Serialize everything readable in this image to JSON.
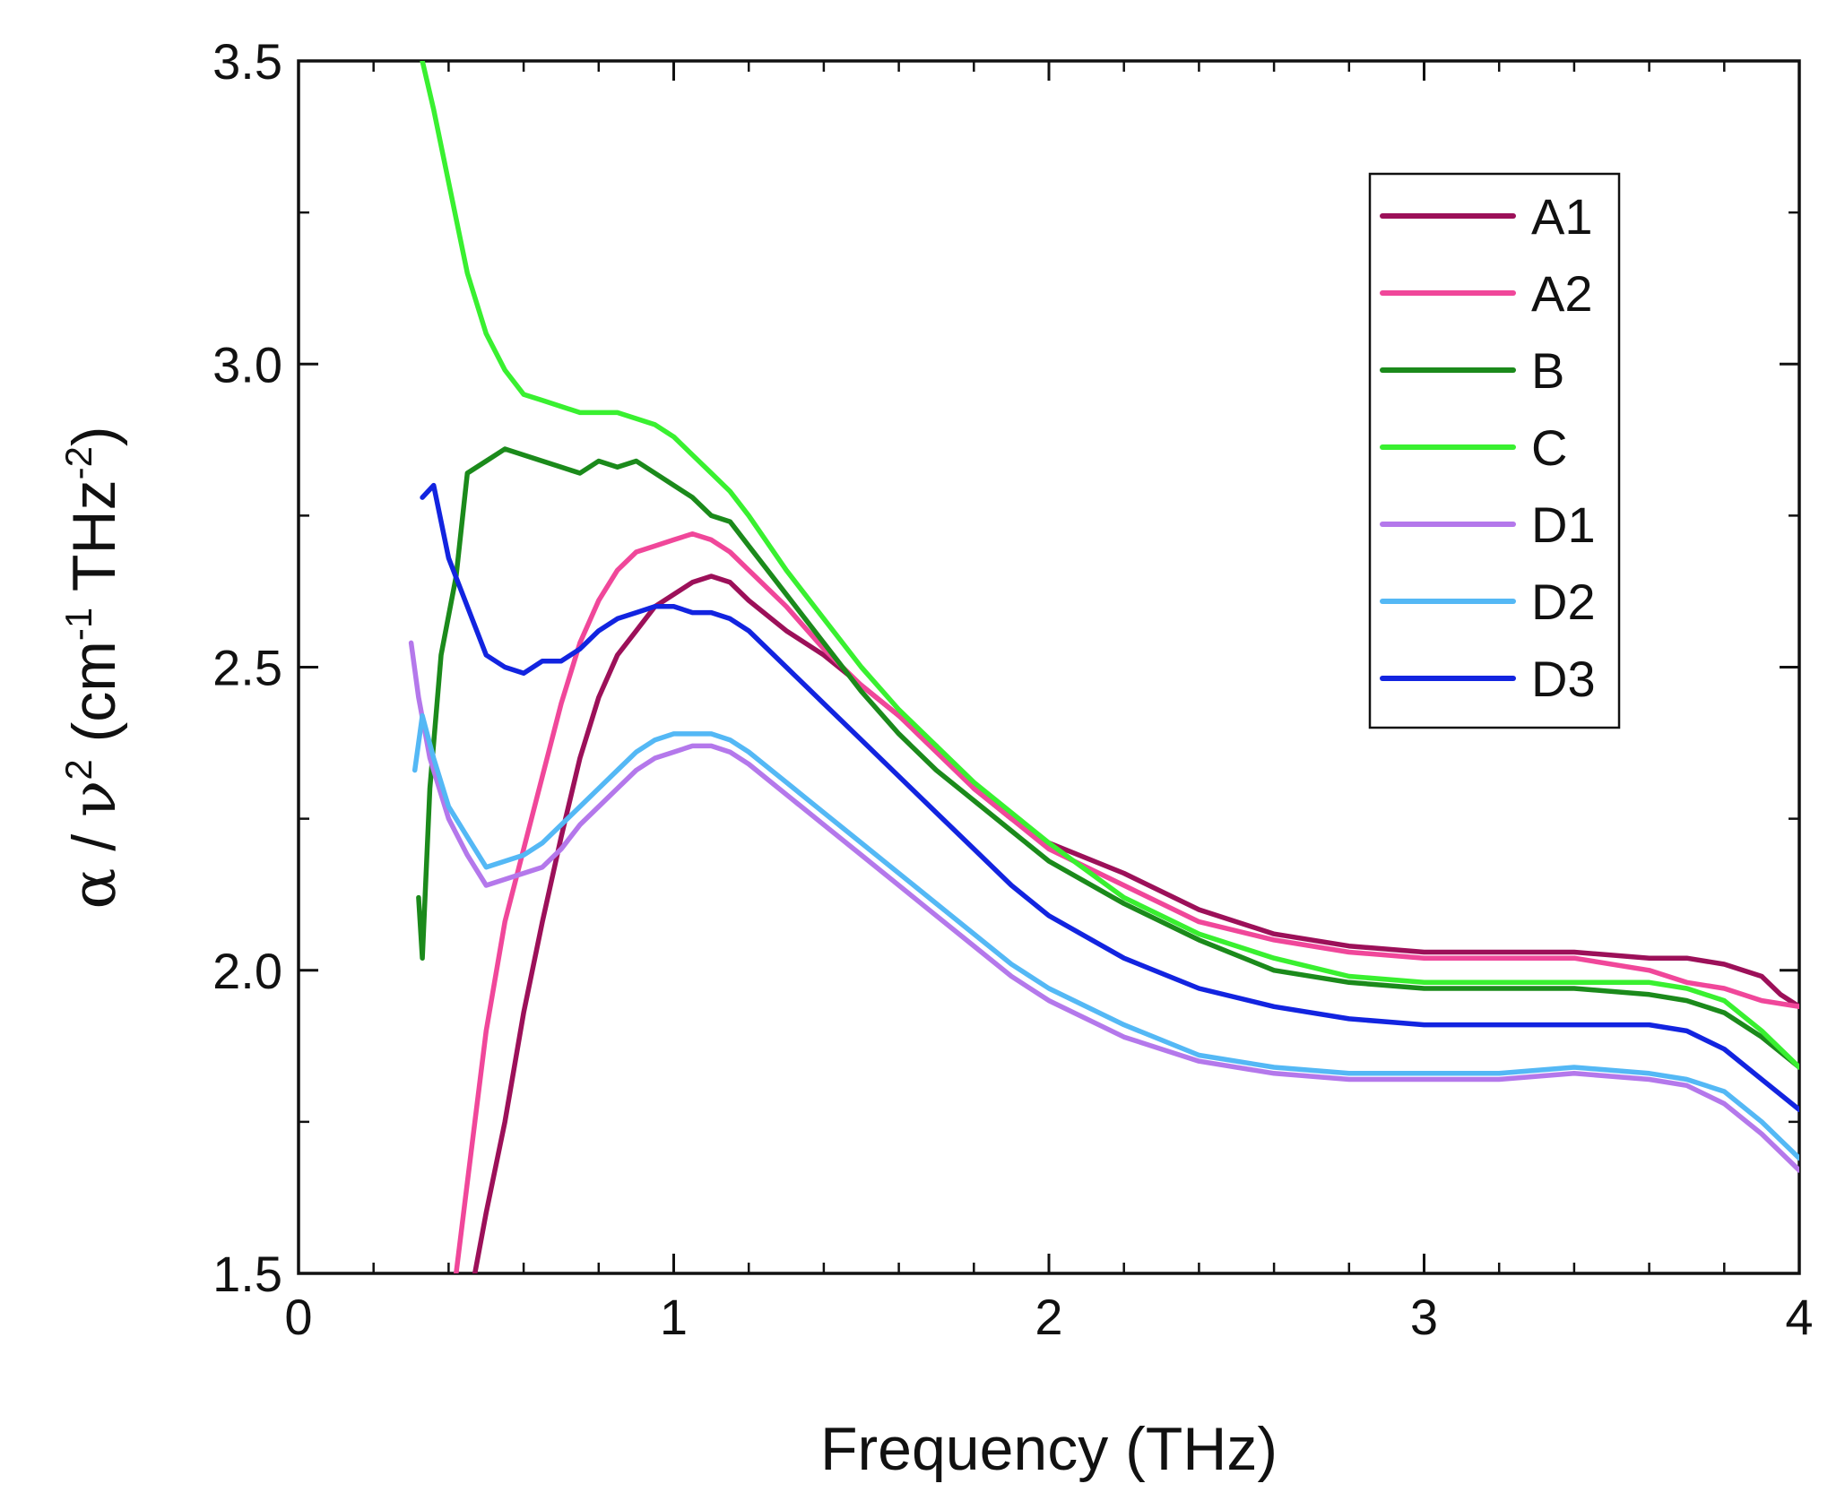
{
  "chart_data": {
    "type": "line",
    "title": "",
    "xlabel": "Frequency (THz)",
    "ylabel": {
      "alpha": "α",
      "sep1": " / ",
      "nu": "ν",
      "sq": "2",
      "open": " (cm",
      "cm_exp": "-1",
      "mid": " THz",
      "thz_exp": "-2",
      "close": ")"
    },
    "xlim": [
      0,
      4
    ],
    "ylim": [
      1.5,
      3.5
    ],
    "xticks": [
      0,
      1,
      2,
      3,
      4
    ],
    "xtick_labels": [
      "0",
      "1",
      "2",
      "3",
      "4"
    ],
    "yticks": [
      1.5,
      2.0,
      2.5,
      3.0,
      3.5
    ],
    "ytick_labels": [
      "1.5",
      "2.0",
      "2.5",
      "3.0",
      "3.5"
    ],
    "x_minor_step": 0.2,
    "y_minor_step": 0.25,
    "grid": false,
    "legend_position": "top-right",
    "series": [
      {
        "name": "A1",
        "color": "#9c1059",
        "x": [
          0.47,
          0.5,
          0.55,
          0.6,
          0.65,
          0.7,
          0.75,
          0.8,
          0.85,
          0.9,
          0.95,
          1.0,
          1.05,
          1.1,
          1.15,
          1.2,
          1.3,
          1.4,
          1.5,
          1.6,
          1.7,
          1.8,
          1.9,
          2.0,
          2.2,
          2.4,
          2.6,
          2.8,
          3.0,
          3.2,
          3.4,
          3.6,
          3.7,
          3.8,
          3.85,
          3.9,
          3.95,
          4.0
        ],
        "y": [
          1.5,
          1.6,
          1.75,
          1.93,
          2.08,
          2.22,
          2.35,
          2.45,
          2.52,
          2.56,
          2.6,
          2.62,
          2.64,
          2.65,
          2.64,
          2.61,
          2.56,
          2.52,
          2.47,
          2.42,
          2.37,
          2.3,
          2.25,
          2.21,
          2.16,
          2.1,
          2.06,
          2.04,
          2.03,
          2.03,
          2.03,
          2.02,
          2.02,
          2.01,
          2.0,
          1.99,
          1.96,
          1.94
        ]
      },
      {
        "name": "A2",
        "color": "#f0479a",
        "x": [
          0.42,
          0.45,
          0.5,
          0.55,
          0.6,
          0.65,
          0.7,
          0.75,
          0.8,
          0.85,
          0.9,
          0.95,
          1.0,
          1.05,
          1.1,
          1.15,
          1.2,
          1.3,
          1.4,
          1.5,
          1.6,
          1.7,
          1.8,
          1.9,
          2.0,
          2.2,
          2.4,
          2.6,
          2.8,
          3.0,
          3.2,
          3.4,
          3.6,
          3.7,
          3.8,
          3.9,
          4.0
        ],
        "y": [
          1.5,
          1.65,
          1.9,
          2.08,
          2.2,
          2.32,
          2.44,
          2.54,
          2.61,
          2.66,
          2.69,
          2.7,
          2.71,
          2.72,
          2.71,
          2.69,
          2.66,
          2.6,
          2.53,
          2.47,
          2.42,
          2.36,
          2.3,
          2.25,
          2.2,
          2.14,
          2.08,
          2.05,
          2.03,
          2.02,
          2.02,
          2.02,
          2.0,
          1.98,
          1.97,
          1.95,
          1.94
        ]
      },
      {
        "name": "B",
        "color": "#1b8a1b",
        "x": [
          0.32,
          0.33,
          0.35,
          0.38,
          0.42,
          0.45,
          0.5,
          0.55,
          0.6,
          0.65,
          0.7,
          0.75,
          0.8,
          0.85,
          0.9,
          0.95,
          1.0,
          1.05,
          1.1,
          1.15,
          1.2,
          1.3,
          1.4,
          1.5,
          1.6,
          1.7,
          1.8,
          1.9,
          2.0,
          2.2,
          2.4,
          2.6,
          2.8,
          3.0,
          3.2,
          3.4,
          3.6,
          3.7,
          3.8,
          3.9,
          4.0
        ],
        "y": [
          2.12,
          2.02,
          2.3,
          2.52,
          2.65,
          2.82,
          2.84,
          2.86,
          2.85,
          2.84,
          2.83,
          2.82,
          2.84,
          2.83,
          2.84,
          2.82,
          2.8,
          2.78,
          2.75,
          2.74,
          2.7,
          2.62,
          2.54,
          2.46,
          2.39,
          2.33,
          2.28,
          2.23,
          2.18,
          2.11,
          2.05,
          2.0,
          1.98,
          1.97,
          1.97,
          1.97,
          1.96,
          1.95,
          1.93,
          1.89,
          1.84
        ]
      },
      {
        "name": "C",
        "color": "#39f030",
        "x": [
          0.33,
          0.36,
          0.4,
          0.45,
          0.5,
          0.55,
          0.6,
          0.65,
          0.7,
          0.75,
          0.8,
          0.85,
          0.9,
          0.95,
          1.0,
          1.05,
          1.1,
          1.15,
          1.2,
          1.3,
          1.4,
          1.5,
          1.6,
          1.7,
          1.8,
          1.9,
          2.0,
          2.2,
          2.4,
          2.6,
          2.8,
          3.0,
          3.2,
          3.4,
          3.6,
          3.7,
          3.8,
          3.9,
          4.0
        ],
        "y": [
          3.5,
          3.42,
          3.3,
          3.15,
          3.05,
          2.99,
          2.95,
          2.94,
          2.93,
          2.92,
          2.92,
          2.92,
          2.91,
          2.9,
          2.88,
          2.85,
          2.82,
          2.79,
          2.75,
          2.66,
          2.58,
          2.5,
          2.43,
          2.37,
          2.31,
          2.26,
          2.21,
          2.12,
          2.06,
          2.02,
          1.99,
          1.98,
          1.98,
          1.98,
          1.98,
          1.97,
          1.95,
          1.9,
          1.84
        ]
      },
      {
        "name": "D1",
        "color": "#b478eb",
        "x": [
          0.3,
          0.32,
          0.35,
          0.4,
          0.45,
          0.5,
          0.55,
          0.6,
          0.65,
          0.7,
          0.75,
          0.8,
          0.85,
          0.9,
          0.95,
          1.0,
          1.05,
          1.1,
          1.15,
          1.2,
          1.3,
          1.4,
          1.5,
          1.6,
          1.7,
          1.8,
          1.9,
          2.0,
          2.2,
          2.4,
          2.6,
          2.8,
          3.0,
          3.2,
          3.4,
          3.6,
          3.7,
          3.8,
          3.9,
          4.0
        ],
        "y": [
          2.54,
          2.45,
          2.35,
          2.25,
          2.19,
          2.14,
          2.15,
          2.16,
          2.17,
          2.2,
          2.24,
          2.27,
          2.3,
          2.33,
          2.35,
          2.36,
          2.37,
          2.37,
          2.36,
          2.34,
          2.29,
          2.24,
          2.19,
          2.14,
          2.09,
          2.04,
          1.99,
          1.95,
          1.89,
          1.85,
          1.83,
          1.82,
          1.82,
          1.82,
          1.83,
          1.82,
          1.81,
          1.78,
          1.73,
          1.67
        ]
      },
      {
        "name": "D2",
        "color": "#54b8f5",
        "x": [
          0.31,
          0.33,
          0.36,
          0.4,
          0.45,
          0.5,
          0.55,
          0.6,
          0.65,
          0.7,
          0.75,
          0.8,
          0.85,
          0.9,
          0.95,
          1.0,
          1.05,
          1.1,
          1.15,
          1.2,
          1.3,
          1.4,
          1.5,
          1.6,
          1.7,
          1.8,
          1.9,
          2.0,
          2.2,
          2.4,
          2.6,
          2.8,
          3.0,
          3.2,
          3.4,
          3.6,
          3.7,
          3.8,
          3.9,
          4.0
        ],
        "y": [
          2.33,
          2.42,
          2.35,
          2.27,
          2.22,
          2.17,
          2.18,
          2.19,
          2.21,
          2.24,
          2.27,
          2.3,
          2.33,
          2.36,
          2.38,
          2.39,
          2.39,
          2.39,
          2.38,
          2.36,
          2.31,
          2.26,
          2.21,
          2.16,
          2.11,
          2.06,
          2.01,
          1.97,
          1.91,
          1.86,
          1.84,
          1.83,
          1.83,
          1.83,
          1.84,
          1.83,
          1.82,
          1.8,
          1.75,
          1.69
        ]
      },
      {
        "name": "D3",
        "color": "#1224e0",
        "x": [
          0.33,
          0.36,
          0.4,
          0.45,
          0.5,
          0.55,
          0.6,
          0.65,
          0.7,
          0.75,
          0.8,
          0.85,
          0.9,
          0.95,
          1.0,
          1.05,
          1.1,
          1.15,
          1.2,
          1.3,
          1.4,
          1.5,
          1.6,
          1.7,
          1.8,
          1.9,
          2.0,
          2.2,
          2.4,
          2.6,
          2.8,
          3.0,
          3.2,
          3.4,
          3.6,
          3.7,
          3.8,
          3.9,
          4.0
        ],
        "y": [
          2.78,
          2.8,
          2.68,
          2.6,
          2.52,
          2.5,
          2.49,
          2.51,
          2.51,
          2.53,
          2.56,
          2.58,
          2.59,
          2.6,
          2.6,
          2.59,
          2.59,
          2.58,
          2.56,
          2.5,
          2.44,
          2.38,
          2.32,
          2.26,
          2.2,
          2.14,
          2.09,
          2.02,
          1.97,
          1.94,
          1.92,
          1.91,
          1.91,
          1.91,
          1.91,
          1.9,
          1.87,
          1.82,
          1.77
        ]
      }
    ]
  },
  "stray_mark_note": ""
}
